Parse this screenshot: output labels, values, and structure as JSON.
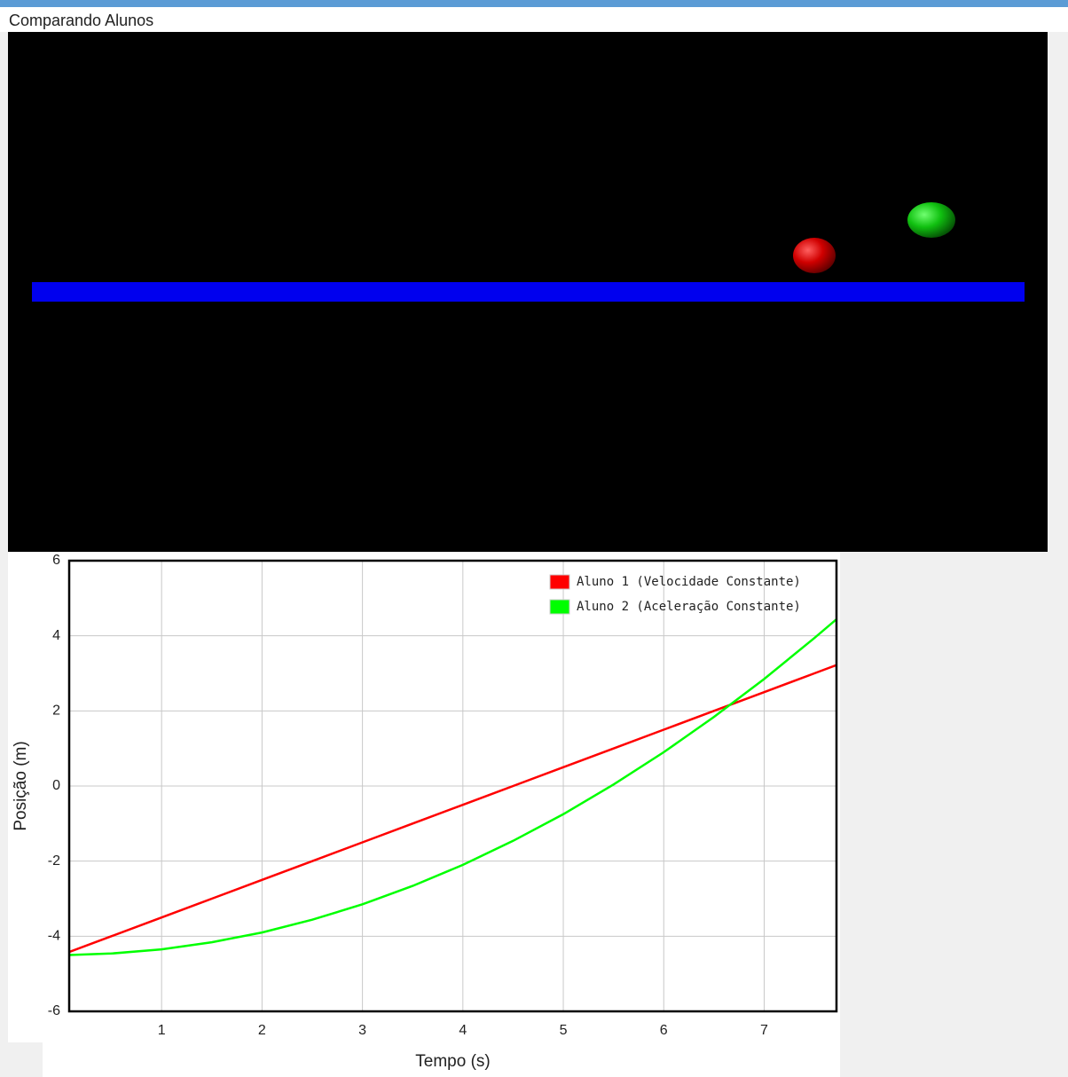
{
  "header": {
    "title": "Comparando Alunos"
  },
  "chart_data": {
    "type": "line",
    "xlabel": "Tempo (s)",
    "ylabel": "Posição (m)",
    "x": [
      0.08,
      0.5,
      1,
      1.5,
      2,
      2.5,
      3,
      3.5,
      4,
      4.5,
      5,
      5.5,
      6,
      6.5,
      7,
      7.5,
      7.72
    ],
    "series": [
      {
        "name": "Aluno 1 (Velocidade Constante)",
        "color": "#ff0000",
        "values": [
          -4.42,
          -4,
          -3.5,
          -3,
          -2.5,
          -2,
          -1.5,
          -1,
          -0.5,
          0,
          0.5,
          1,
          1.5,
          2,
          2.5,
          3,
          3.22
        ]
      },
      {
        "name": "Aluno 2 (Aceleração Constante)",
        "color": "#00ff00",
        "values": [
          -4.5,
          -4.46,
          -4.35,
          -4.16,
          -3.9,
          -3.56,
          -3.15,
          -2.66,
          -2.1,
          -1.46,
          -0.75,
          0.04,
          0.9,
          1.84,
          2.85,
          3.94,
          4.44
        ]
      }
    ],
    "xlim": [
      0.08,
      7.72
    ],
    "ylim": [
      -6,
      6
    ],
    "xticks": [
      1,
      2,
      3,
      4,
      5,
      6,
      7
    ],
    "yticks": [
      -6,
      -4,
      -2,
      0,
      2,
      4,
      6
    ],
    "grid": true,
    "legend": "top-right"
  }
}
